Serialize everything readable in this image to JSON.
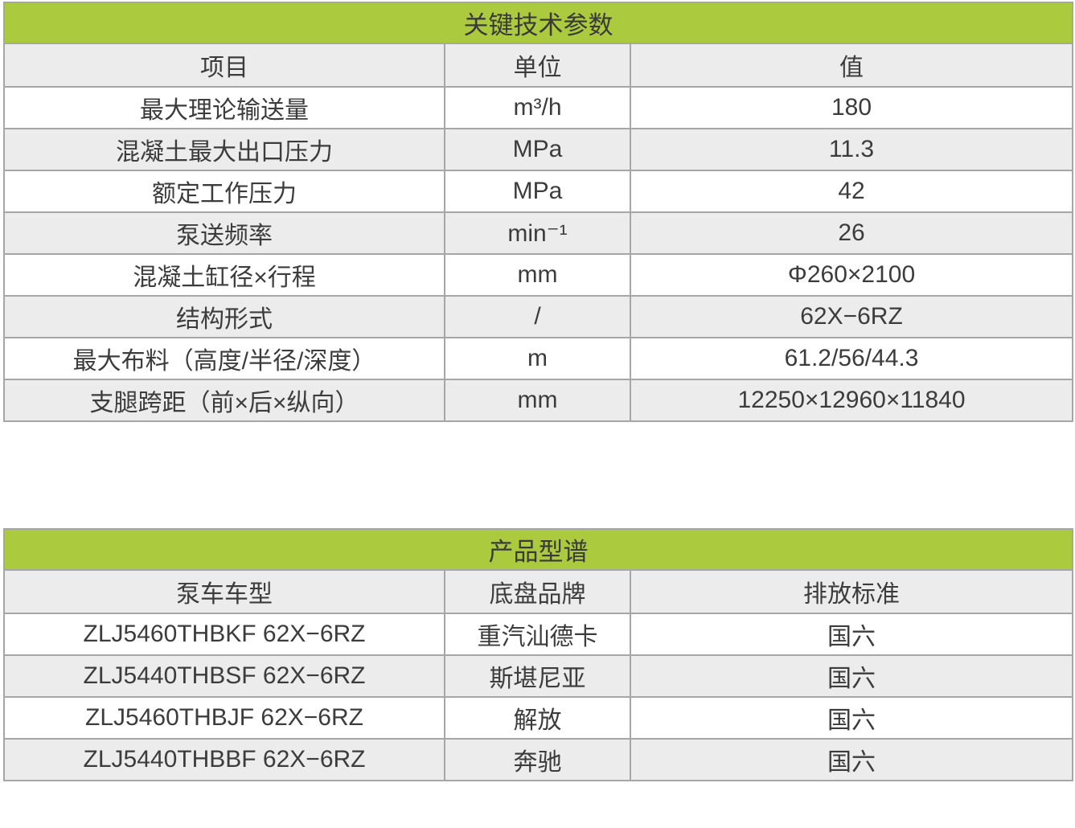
{
  "colors": {
    "header_green": "#abca3e",
    "row_stripe_gray": "#ececec",
    "border_gray": "#a6a6a6",
    "text": "#3c3c3c"
  },
  "spec_table": {
    "title": "关键技术参数",
    "columns": [
      "项目",
      "单位",
      "值"
    ],
    "rows": [
      {
        "item": "最大理论输送量",
        "unit": "m³/h",
        "value": "180"
      },
      {
        "item": "混凝土最大出口压力",
        "unit": "MPa",
        "value": "11.3"
      },
      {
        "item": "额定工作压力",
        "unit": "MPa",
        "value": "42"
      },
      {
        "item": "泵送频率",
        "unit": "min⁻¹",
        "value": "26"
      },
      {
        "item": "混凝土缸径×行程",
        "unit": "mm",
        "value": "Φ260×2100"
      },
      {
        "item": "结构形式",
        "unit": "/",
        "value": "62X−6RZ"
      },
      {
        "item": "最大布料（高度/半径/深度）",
        "unit": "m",
        "value": "61.2/56/44.3"
      },
      {
        "item": "支腿跨距（前×后×纵向）",
        "unit": "mm",
        "value": "12250×12960×11840"
      }
    ]
  },
  "model_table": {
    "title": "产品型谱",
    "columns": [
      "泵车车型",
      "底盘品牌",
      "排放标准"
    ],
    "rows": [
      {
        "model": "ZLJ5460THBKF 62X−6RZ",
        "chassis": "重汽汕德卡",
        "emission": "国六"
      },
      {
        "model": "ZLJ5440THBSF 62X−6RZ",
        "chassis": "斯堪尼亚",
        "emission": "国六"
      },
      {
        "model": "ZLJ5460THBJF 62X−6RZ",
        "chassis": "解放",
        "emission": "国六"
      },
      {
        "model": "ZLJ5440THBBF 62X−6RZ",
        "chassis": "奔驰",
        "emission": "国六"
      }
    ]
  }
}
